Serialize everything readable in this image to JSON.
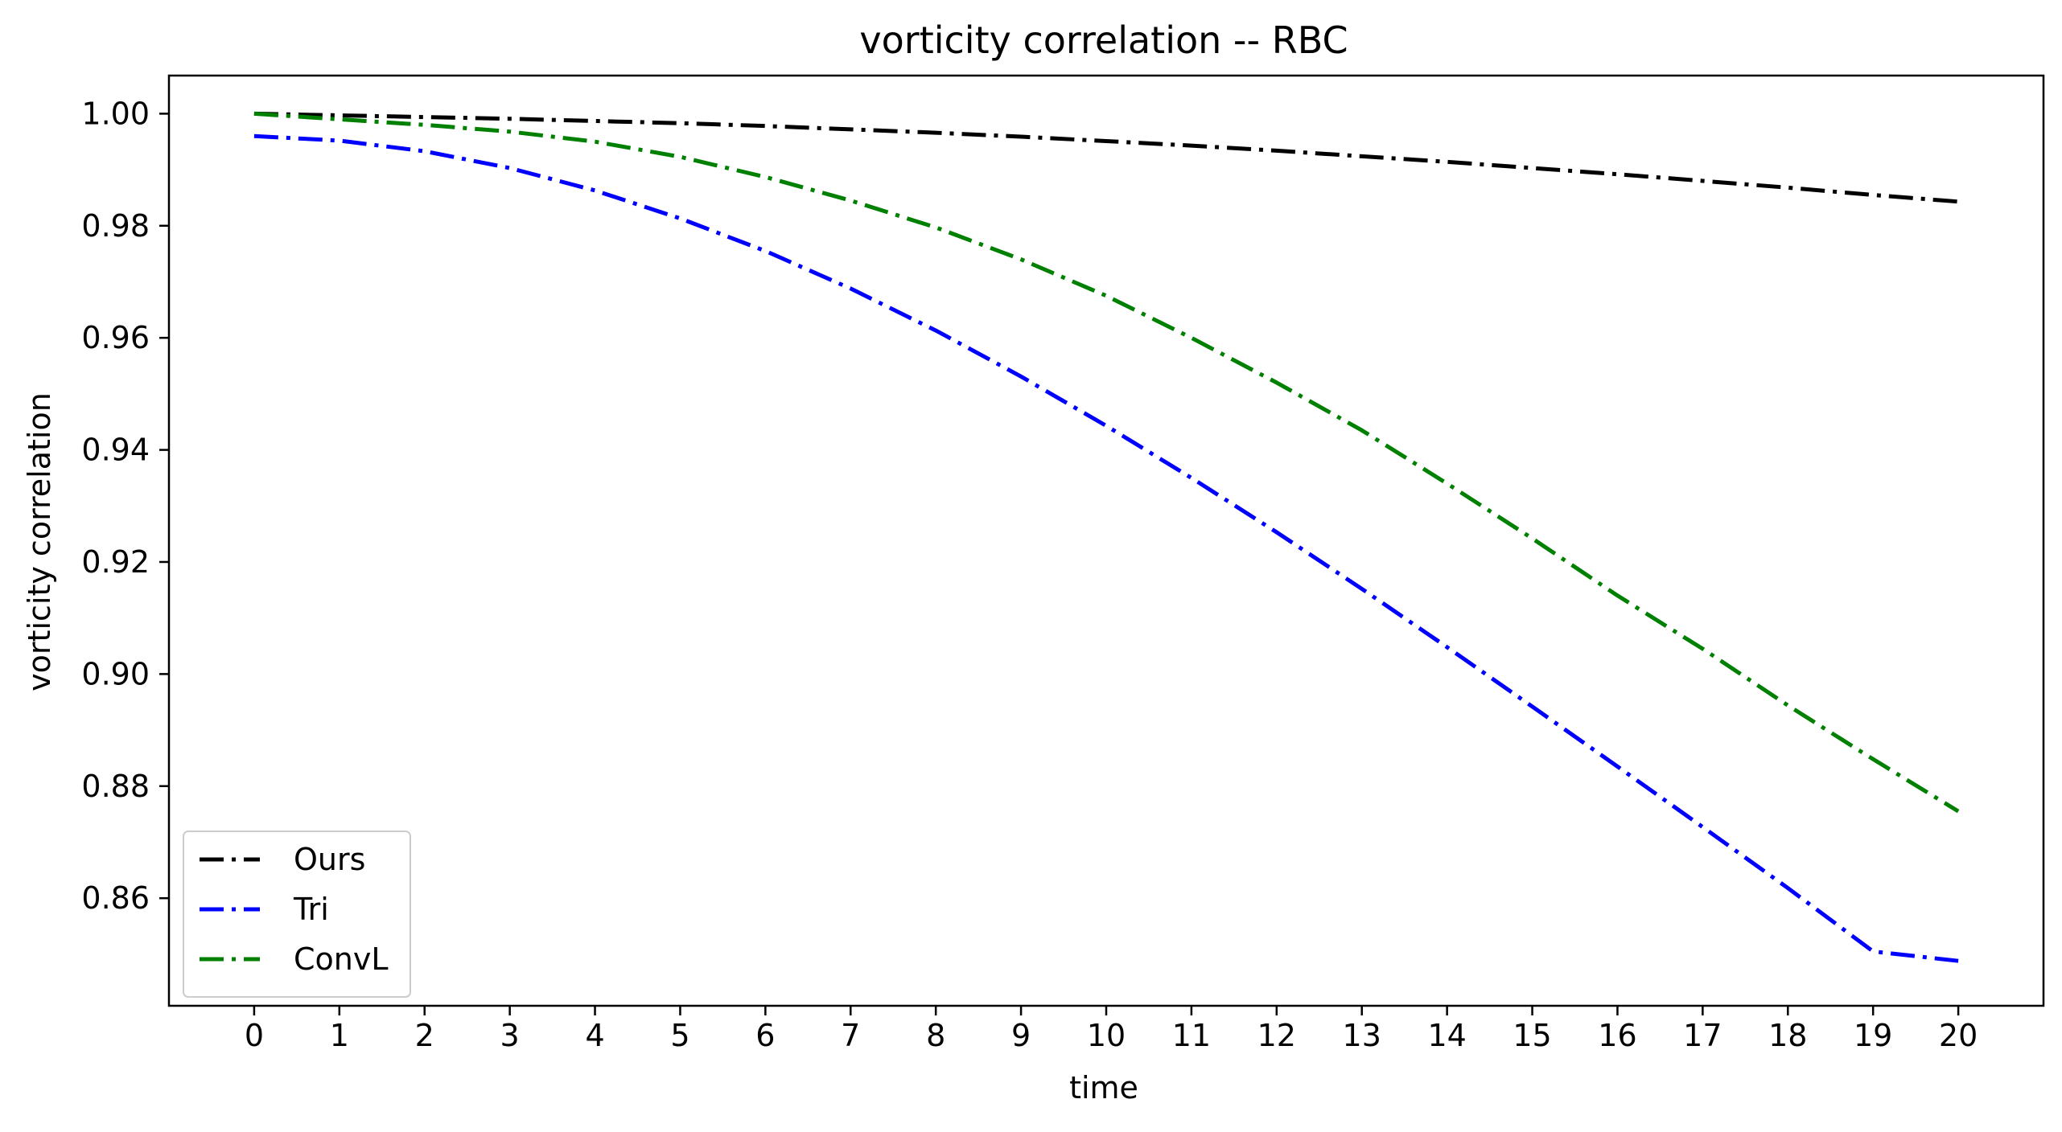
{
  "chart_data": {
    "type": "line",
    "title": "vorticity correlation -- RBC",
    "xlabel": "time",
    "ylabel": "vorticity correlation",
    "xlim": [
      -1,
      21
    ],
    "ylim": [
      0.8408,
      1.0068
    ],
    "x_ticks": [
      "0",
      "1",
      "2",
      "3",
      "4",
      "5",
      "6",
      "7",
      "8",
      "9",
      "10",
      "11",
      "12",
      "13",
      "14",
      "15",
      "16",
      "17",
      "18",
      "19",
      "20"
    ],
    "y_ticks": [
      "0.86",
      "0.88",
      "0.90",
      "0.92",
      "0.94",
      "0.96",
      "0.98",
      "1.00"
    ],
    "grid": false,
    "legend_position": "lower-left",
    "x": [
      0,
      1,
      2,
      3,
      4,
      5,
      6,
      7,
      8,
      9,
      10,
      11,
      12,
      13,
      14,
      15,
      16,
      17,
      18,
      19,
      20
    ],
    "series": [
      {
        "name": "Ours",
        "color": "#000000",
        "linestyle": "dashdot",
        "values": [
          1.0,
          0.9997,
          0.9994,
          0.9991,
          0.9987,
          0.9983,
          0.9978,
          0.9972,
          0.9966,
          0.9959,
          0.9951,
          0.9943,
          0.9934,
          0.9924,
          0.9914,
          0.9903,
          0.9892,
          0.988,
          0.9868,
          0.9855,
          0.9843
        ]
      },
      {
        "name": "Tri",
        "color": "#0000ff",
        "linestyle": "dashdot",
        "values": [
          0.996,
          0.9952,
          0.9933,
          0.9903,
          0.9863,
          0.9813,
          0.9755,
          0.9688,
          0.9613,
          0.9531,
          0.9443,
          0.935,
          0.9253,
          0.9152,
          0.9048,
          0.8942,
          0.8835,
          0.8727,
          0.8618,
          0.8505,
          0.8488
        ]
      },
      {
        "name": "ConvL",
        "color": "#008000",
        "linestyle": "dashdot",
        "values": [
          1.0,
          0.999,
          0.998,
          0.9968,
          0.995,
          0.9923,
          0.9887,
          0.9845,
          0.9797,
          0.974,
          0.9675,
          0.96,
          0.952,
          0.9435,
          0.934,
          0.9242,
          0.914,
          0.9045,
          0.8944,
          0.8848,
          0.8755
        ]
      }
    ]
  }
}
